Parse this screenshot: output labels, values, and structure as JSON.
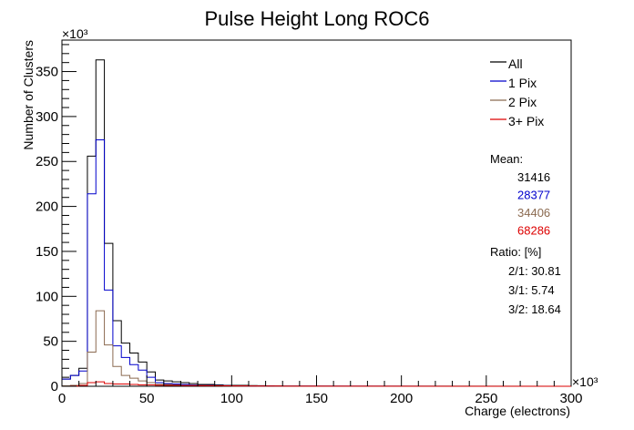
{
  "chart_data": {
    "type": "histogram",
    "title": "Pulse Height Long ROC6",
    "xlabel": "Charge (electrons)",
    "ylabel": "Number of Clusters",
    "x_multiplier_label": "×10³",
    "y_multiplier_label": "×10³",
    "xlim": [
      0,
      300
    ],
    "ylim": [
      0,
      385
    ],
    "x_unit_scale": 1000,
    "y_unit_scale": 1000,
    "bin_width": 5,
    "x_ticks": [
      0,
      50,
      100,
      150,
      200,
      250,
      300
    ],
    "y_ticks": [
      0,
      50,
      100,
      150,
      200,
      250,
      300,
      350
    ],
    "bin_edges_start": 0,
    "series": [
      {
        "name": "All",
        "color": "#000000",
        "values": [
          8,
          12,
          20,
          256,
          363,
          159,
          73,
          48,
          37,
          27,
          16,
          7,
          6,
          5,
          4,
          3,
          2,
          2,
          1.5,
          1,
          1,
          1,
          0.8,
          0.6,
          0.5,
          0.4,
          0.3,
          0.2
        ]
      },
      {
        "name": "1 Pix",
        "color": "#0000cc",
        "values": [
          8,
          12,
          17,
          214,
          274,
          107,
          45,
          32,
          24,
          18,
          10,
          4,
          3,
          2.5,
          2,
          1.5,
          1,
          1,
          0.8,
          0.6,
          0.5,
          0.4,
          0.3,
          0.2,
          0.2,
          0.1,
          0.1,
          0.1
        ]
      },
      {
        "name": "2 Pix",
        "color": "#8b6a50",
        "values": [
          0.5,
          1,
          3,
          38,
          84,
          46,
          22,
          12,
          9,
          6,
          4,
          2,
          2,
          1.5,
          1,
          1,
          0.8,
          0.6,
          0.5,
          0.4,
          0.3,
          0.2,
          0.2,
          0.1,
          0.1,
          0.1,
          0,
          0
        ]
      },
      {
        "name": "3+ Pix",
        "color": "#dd0000",
        "values": [
          0,
          0.2,
          1,
          4,
          5,
          3,
          2.5,
          2.5,
          2,
          1.5,
          1.5,
          1.2,
          1,
          1,
          0.8,
          0.8,
          0.6,
          0.6,
          0.5,
          0.5,
          0.4,
          0.4,
          0.3,
          0.3,
          0.2,
          0.2,
          0.1,
          0.1
        ]
      }
    ],
    "legend_position": "top-right",
    "stats": {
      "mean_label": "Mean:",
      "means": [
        {
          "value": "31416",
          "color": "#000000"
        },
        {
          "value": "28377",
          "color": "#0000cc"
        },
        {
          "value": "34406",
          "color": "#8b6a50"
        },
        {
          "value": "68286",
          "color": "#dd0000"
        }
      ],
      "ratio_label": "Ratio: [%]",
      "ratios": [
        "2/1: 30.81",
        "3/1: 5.74",
        "3/2: 18.64"
      ]
    }
  }
}
